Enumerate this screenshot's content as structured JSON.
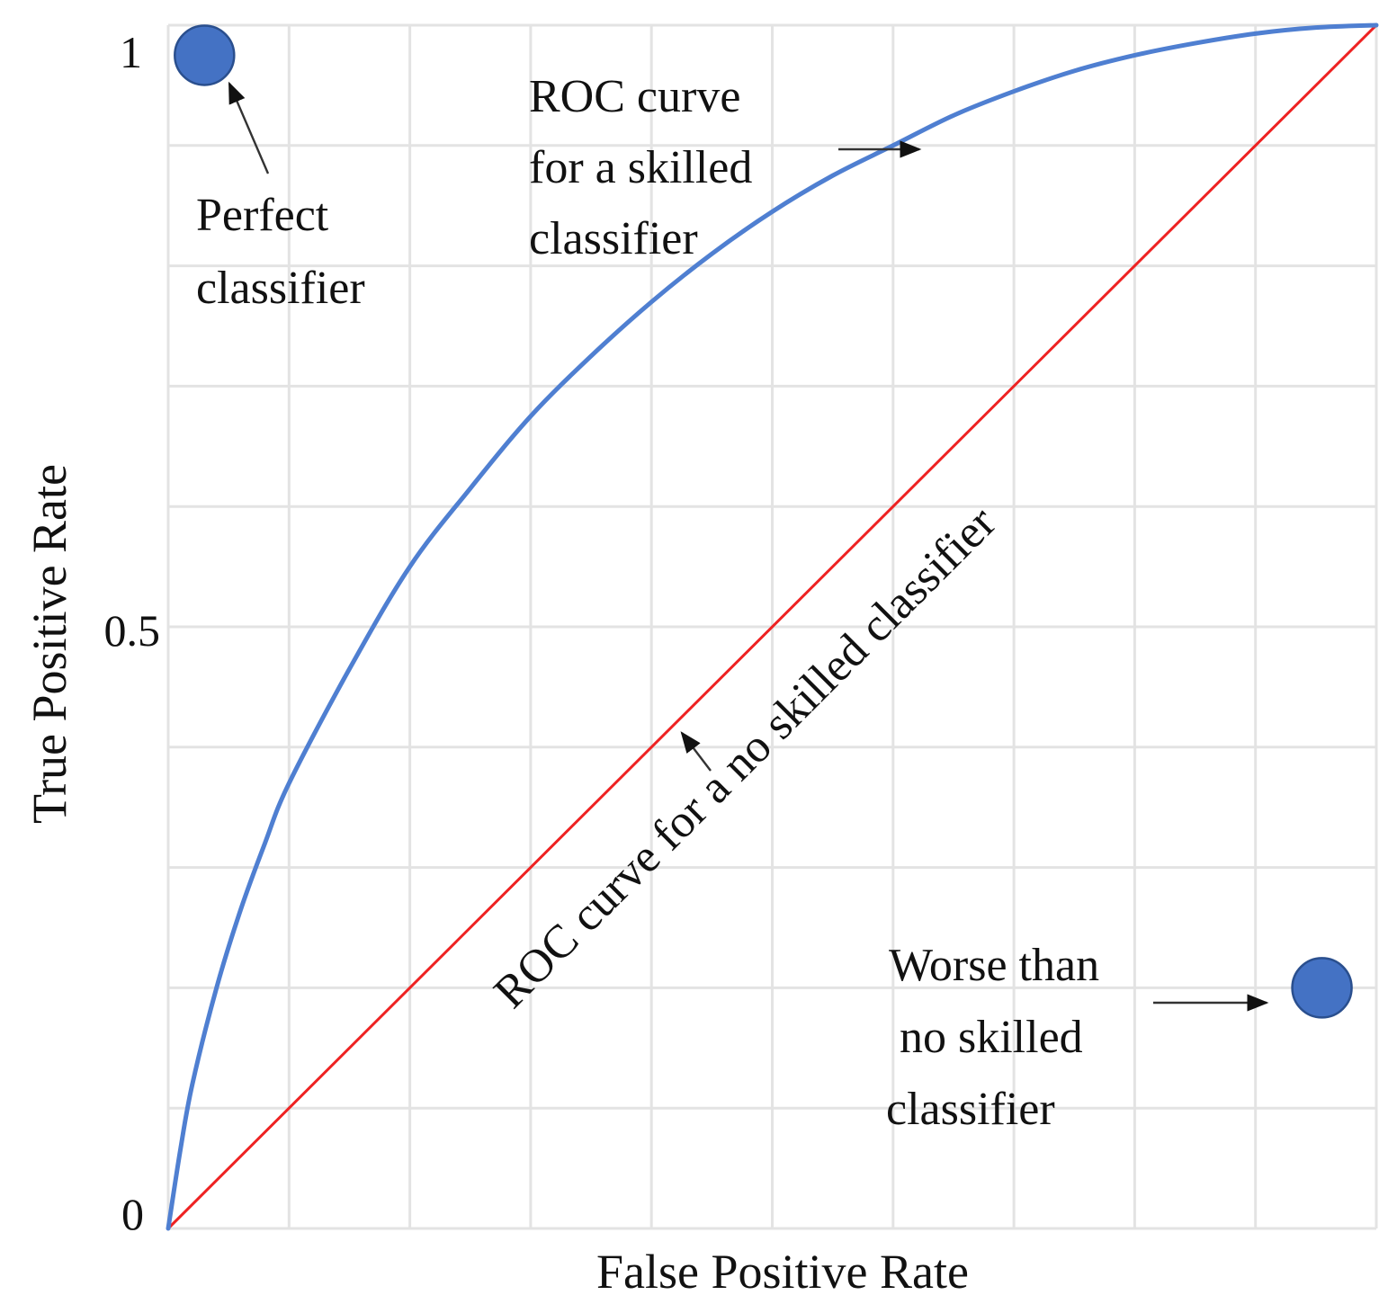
{
  "chart_data": {
    "type": "line",
    "xlabel": "False Positive Rate",
    "ylabel": "True Positive Rate",
    "xlim": [
      0,
      1
    ],
    "ylim": [
      0,
      1
    ],
    "grid": true,
    "grid_divisions": 10,
    "yticks": [
      {
        "value": 0,
        "label": "0"
      },
      {
        "value": 0.5,
        "label": "0.5"
      },
      {
        "value": 1,
        "label": "1"
      }
    ],
    "series": [
      {
        "name": "ROC curve for a skilled classifier",
        "color": "#4f7fd1",
        "x": [
          0,
          0.01,
          0.02,
          0.04,
          0.06,
          0.08,
          0.1,
          0.15,
          0.2,
          0.25,
          0.3,
          0.35,
          0.4,
          0.45,
          0.5,
          0.55,
          0.6,
          0.65,
          0.7,
          0.75,
          0.8,
          0.85,
          0.9,
          0.95,
          1
        ],
        "y": [
          0,
          0.065,
          0.12,
          0.2,
          0.265,
          0.32,
          0.37,
          0.465,
          0.55,
          0.615,
          0.675,
          0.725,
          0.77,
          0.81,
          0.845,
          0.875,
          0.9,
          0.925,
          0.945,
          0.962,
          0.975,
          0.985,
          0.993,
          0.998,
          1
        ]
      },
      {
        "name": "ROC curve for a no skilled classifier",
        "color": "#ee2222",
        "x": [
          0,
          1
        ],
        "y": [
          0,
          1
        ]
      }
    ],
    "points": [
      {
        "name": "Perfect classifier",
        "x": 0.03,
        "y": 0.975,
        "color": "#4472c4"
      },
      {
        "name": "Worse than no skilled classifier",
        "x": 0.955,
        "y": 0.2,
        "color": "#4472c4"
      }
    ],
    "annotations": {
      "perfect": [
        "Perfect",
        "classifier"
      ],
      "skilled": [
        "ROC curve",
        "for a skilled",
        "classifier"
      ],
      "no_skill": "ROC curve for a no skilled classifier",
      "worse": [
        "Worse than",
        "no skilled",
        "classifier"
      ]
    }
  }
}
